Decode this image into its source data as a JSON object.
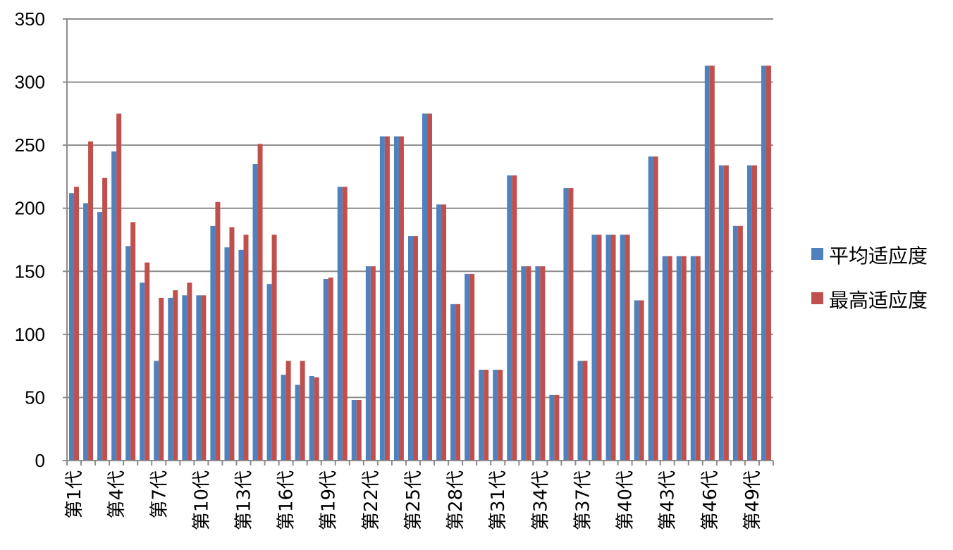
{
  "chart_data": {
    "type": "bar",
    "title": "",
    "xlabel": "",
    "ylabel": "",
    "ylim": [
      0,
      350
    ],
    "yticks": [
      0,
      50,
      100,
      150,
      200,
      250,
      300,
      350
    ],
    "grid": true,
    "legend_position": "right",
    "colors": {
      "平均适应度": "#4f81bd",
      "最高适应度": "#c0504d"
    },
    "categories": [
      "第1代",
      "第2代",
      "第3代",
      "第4代",
      "第5代",
      "第6代",
      "第7代",
      "第8代",
      "第9代",
      "第10代",
      "第11代",
      "第12代",
      "第13代",
      "第14代",
      "第15代",
      "第16代",
      "第17代",
      "第18代",
      "第19代",
      "第20代",
      "第21代",
      "第22代",
      "第23代",
      "第24代",
      "第25代",
      "第26代",
      "第27代",
      "第28代",
      "第29代",
      "第30代",
      "第31代",
      "第32代",
      "第33代",
      "第34代",
      "第35代",
      "第36代",
      "第37代",
      "第38代",
      "第39代",
      "第40代",
      "第41代",
      "第42代",
      "第43代",
      "第44代",
      "第45代",
      "第46代",
      "第47代",
      "第48代",
      "第49代",
      "第50代"
    ],
    "category_labels_shown": [
      "第1代",
      "第4代",
      "第7代",
      "第10代",
      "第13代",
      "第16代",
      "第19代",
      "第22代",
      "第25代",
      "第28代",
      "第31代",
      "第34代",
      "第37代",
      "第40代",
      "第43代",
      "第46代",
      "第49代"
    ],
    "series": [
      {
        "name": "平均适应度",
        "values": [
          212,
          204,
          197,
          245,
          170,
          141,
          79,
          129,
          131,
          131,
          186,
          169,
          167,
          235,
          140,
          68,
          60,
          67,
          144,
          217,
          48,
          154,
          257,
          257,
          178,
          275,
          203,
          124,
          148,
          72,
          72,
          226,
          154,
          154,
          52,
          216,
          79,
          179,
          179,
          179,
          127,
          241,
          162,
          162,
          162,
          313,
          234,
          186,
          234,
          313
        ]
      },
      {
        "name": "最高适应度",
        "values": [
          217,
          253,
          224,
          275,
          189,
          157,
          129,
          135,
          141,
          131,
          205,
          185,
          179,
          251,
          179,
          79,
          79,
          66,
          145,
          217,
          48,
          154,
          257,
          257,
          178,
          275,
          203,
          124,
          148,
          72,
          72,
          226,
          154,
          154,
          52,
          216,
          79,
          179,
          179,
          179,
          127,
          241,
          162,
          162,
          162,
          313,
          234,
          186,
          234,
          313
        ]
      }
    ]
  }
}
